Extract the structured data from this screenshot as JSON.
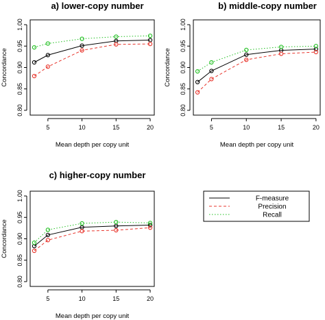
{
  "chart_data": [
    {
      "type": "line",
      "title": "a) lower-copy number",
      "xlabel": "Mean depth per copy unit",
      "ylabel": "Concordance",
      "x": [
        3,
        5,
        10,
        15,
        20
      ],
      "xticks": [
        "5",
        "10",
        "15",
        "20"
      ],
      "yticks": [
        "0.80",
        "0.85",
        "0.90",
        "0.95",
        "1.00"
      ],
      "ylim": [
        0.8,
        1.0
      ],
      "series": [
        {
          "key": "f",
          "values": [
            0.912,
            0.929,
            0.951,
            0.962,
            0.964
          ]
        },
        {
          "key": "p",
          "values": [
            0.88,
            0.902,
            0.94,
            0.954,
            0.955
          ]
        },
        {
          "key": "r",
          "values": [
            0.947,
            0.956,
            0.967,
            0.972,
            0.974
          ]
        }
      ]
    },
    {
      "type": "line",
      "title": "b) middle-copy number",
      "xlabel": "Mean depth per copy unit",
      "ylabel": "Concordance",
      "x": [
        3,
        5,
        10,
        15,
        20
      ],
      "xticks": [
        "5",
        "10",
        "15",
        "20"
      ],
      "yticks": [
        "0.80",
        "0.85",
        "0.90",
        "0.95",
        "1.00"
      ],
      "ylim": [
        0.8,
        1.0
      ],
      "series": [
        {
          "key": "f",
          "values": [
            0.866,
            0.892,
            0.93,
            0.94,
            0.943
          ]
        },
        {
          "key": "p",
          "values": [
            0.842,
            0.873,
            0.918,
            0.932,
            0.936
          ]
        },
        {
          "key": "r",
          "values": [
            0.891,
            0.912,
            0.941,
            0.948,
            0.95
          ]
        }
      ]
    },
    {
      "type": "line",
      "title": "c) higher-copy number",
      "xlabel": "Mean depth per copy unit",
      "ylabel": "Concordance",
      "x": [
        3,
        5,
        10,
        15,
        20
      ],
      "xticks": [
        "5",
        "10",
        "15",
        "20"
      ],
      "yticks": [
        "0.80",
        "0.85",
        "0.90",
        "0.95",
        "1.00"
      ],
      "ylim": [
        0.8,
        1.0
      ],
      "series": [
        {
          "key": "f",
          "values": [
            0.883,
            0.909,
            0.927,
            0.93,
            0.932
          ]
        },
        {
          "key": "p",
          "values": [
            0.872,
            0.897,
            0.918,
            0.92,
            0.926
          ]
        },
        {
          "key": "r",
          "values": [
            0.891,
            0.921,
            0.936,
            0.939,
            0.937
          ]
        }
      ]
    }
  ],
  "legend": {
    "placement": "bottom-right",
    "entries": [
      {
        "key": "f",
        "label": "F-measure"
      },
      {
        "key": "p",
        "label": "Precision"
      },
      {
        "key": "r",
        "label": "Recall"
      }
    ]
  },
  "styles": {
    "f": {
      "color": "#000000",
      "dash": "none"
    },
    "p": {
      "color": "#e8342b",
      "dash": "4,3"
    },
    "r": {
      "color": "#1fbf1f",
      "dash": "1.5,2.5"
    }
  },
  "marker": "open-circle"
}
